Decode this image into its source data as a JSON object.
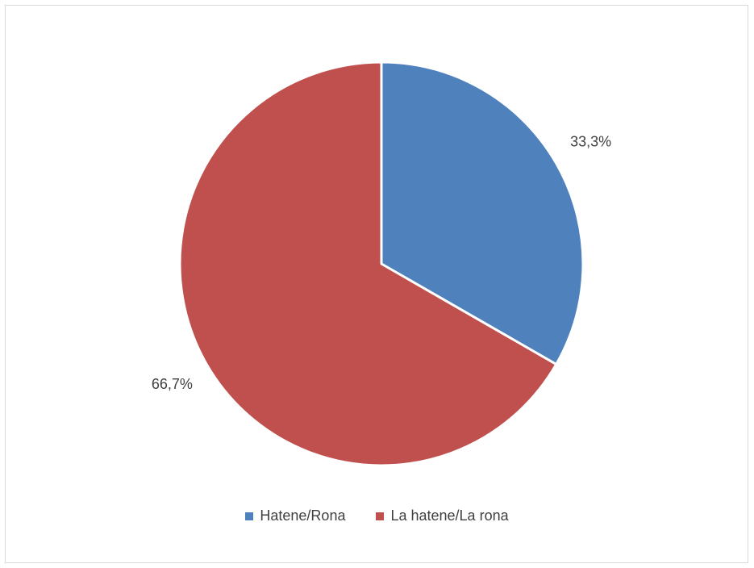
{
  "chart_data": {
    "type": "pie",
    "categories": [
      "Hatene/Rona",
      "La hatene/La rona"
    ],
    "values": [
      33.3,
      66.7
    ],
    "data_labels": [
      "33,3%",
      "66,7%"
    ],
    "colors": [
      "#4f81bd",
      "#c0504d"
    ],
    "legend_position": "bottom",
    "start_angle": "12 o'clock, clockwise"
  }
}
